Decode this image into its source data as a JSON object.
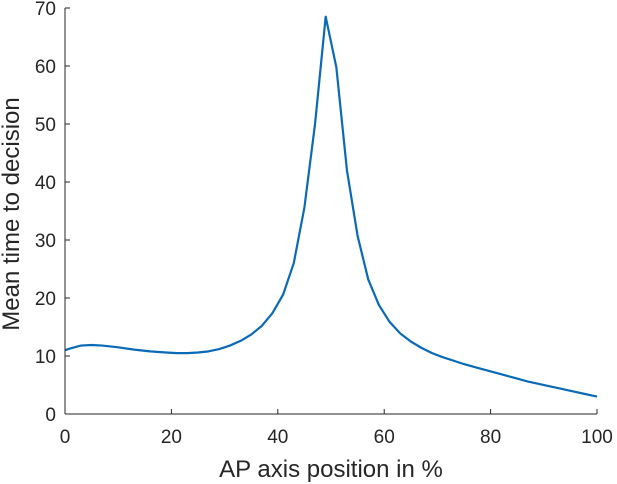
{
  "chart_data": {
    "type": "line",
    "xlabel": "AP axis position in %",
    "ylabel": "Mean time to decision",
    "xlim": [
      0,
      100
    ],
    "ylim": [
      0,
      70
    ],
    "xticks": [
      "0",
      "20",
      "40",
      "60",
      "80",
      "100"
    ],
    "yticks": [
      "0",
      "10",
      "20",
      "30",
      "40",
      "50",
      "60",
      "70"
    ],
    "grid": false,
    "line_color": "#0a6ab5",
    "series": [
      {
        "x": [
          0,
          1,
          3,
          5,
          7,
          10,
          13,
          16,
          19,
          21,
          23,
          25,
          27,
          29,
          31,
          33,
          35,
          37,
          39,
          41,
          43,
          45,
          47,
          49,
          51,
          53,
          55,
          57,
          59,
          61,
          63,
          65,
          67,
          69,
          71,
          73,
          75,
          77,
          79,
          81,
          83,
          85,
          87,
          89,
          91,
          93,
          95,
          97,
          99,
          100
        ],
        "y": [
          11.0,
          11.3,
          11.8,
          11.9,
          11.8,
          11.5,
          11.1,
          10.8,
          10.6,
          10.5,
          10.5,
          10.6,
          10.8,
          11.2,
          11.8,
          12.6,
          13.7,
          15.2,
          17.4,
          20.6,
          26.0,
          35.6,
          50.0,
          68.5,
          59.8,
          42.0,
          30.7,
          23.2,
          18.8,
          15.9,
          13.9,
          12.5,
          11.4,
          10.5,
          9.8,
          9.2,
          8.6,
          8.1,
          7.6,
          7.1,
          6.6,
          6.1,
          5.6,
          5.2,
          4.8,
          4.4,
          4.0,
          3.6,
          3.2,
          3.0
        ]
      }
    ]
  }
}
